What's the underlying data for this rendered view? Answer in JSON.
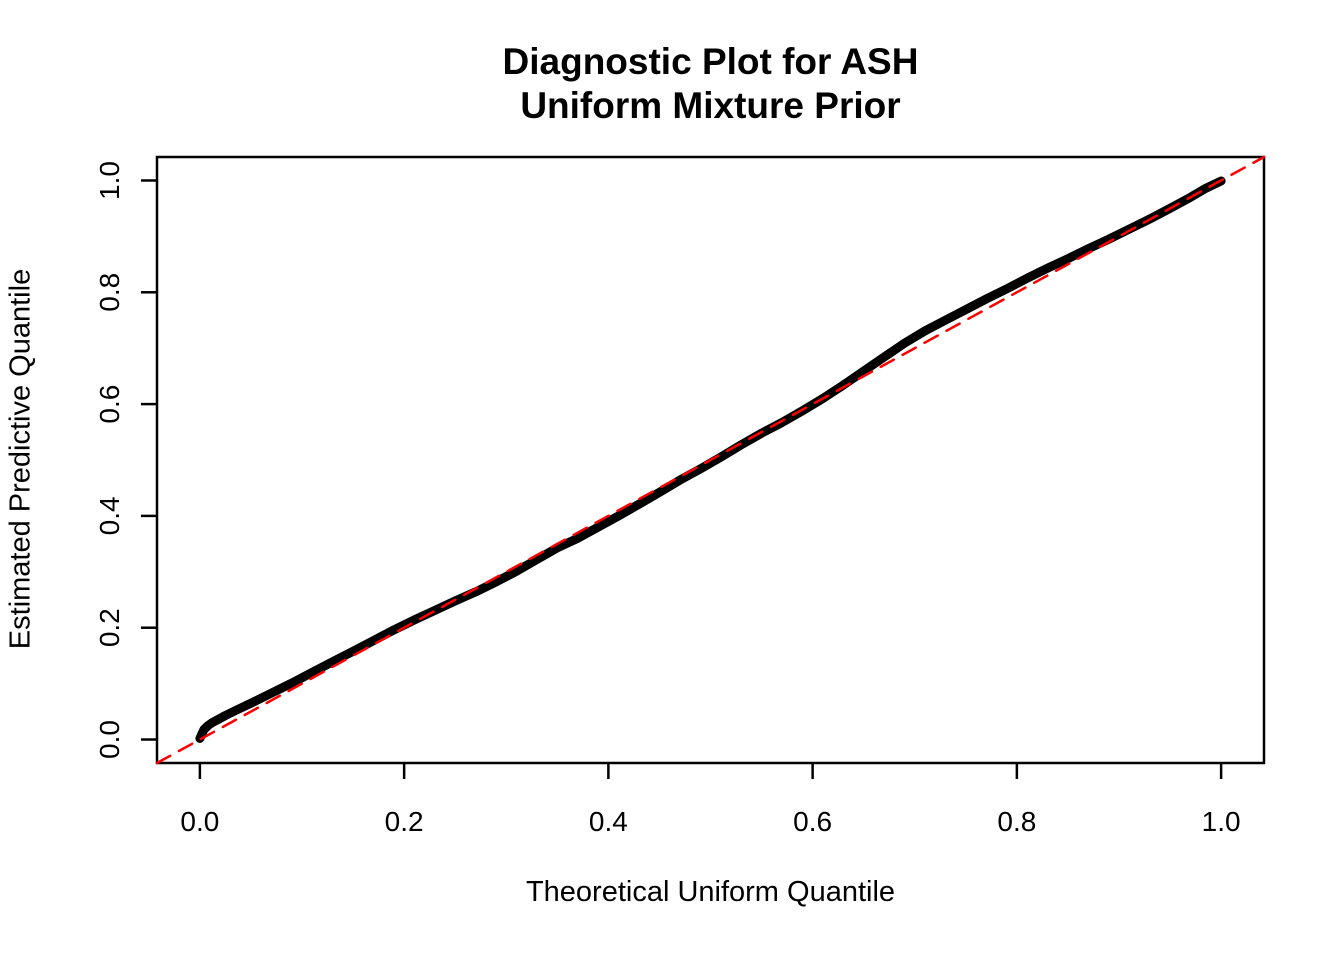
{
  "figure": {
    "title_line1": "Diagnostic Plot for ASH",
    "title_line2": "Uniform Mixture Prior"
  },
  "chart_data": {
    "type": "line",
    "title": "Diagnostic Plot for ASH — Uniform Mixture Prior",
    "xlabel": "Theoretical Uniform Quantile",
    "ylabel": "Estimated Predictive Quantile",
    "xlim": [
      -0.042,
      1.042
    ],
    "ylim": [
      -0.042,
      1.042
    ],
    "grid": false,
    "legend": "none",
    "x_ticks": [
      0.0,
      0.2,
      0.4,
      0.6,
      0.8,
      1.0
    ],
    "x_tick_labels": [
      "0.0",
      "0.2",
      "0.4",
      "0.6",
      "0.8",
      "1.0"
    ],
    "y_ticks": [
      0.0,
      0.2,
      0.4,
      0.6,
      0.8,
      1.0
    ],
    "y_tick_labels": [
      "0.0",
      "0.2",
      "0.4",
      "0.6",
      "0.8",
      "1.0"
    ],
    "colors": {
      "curve": "#000000",
      "reference_line": "#FF0000",
      "axis": "#000000",
      "background": "#FFFFFF"
    },
    "series": [
      {
        "name": "estimated-vs-theoretical-quantiles",
        "role": "data",
        "color": "#000000",
        "dash": false,
        "points": [
          [
            0.0,
            0.002
          ],
          [
            0.002,
            0.01
          ],
          [
            0.004,
            0.018
          ],
          [
            0.008,
            0.025
          ],
          [
            0.012,
            0.03
          ],
          [
            0.018,
            0.036
          ],
          [
            0.025,
            0.043
          ],
          [
            0.035,
            0.052
          ],
          [
            0.05,
            0.065
          ],
          [
            0.07,
            0.083
          ],
          [
            0.09,
            0.101
          ],
          [
            0.11,
            0.12
          ],
          [
            0.13,
            0.139
          ],
          [
            0.15,
            0.158
          ],
          [
            0.17,
            0.177
          ],
          [
            0.19,
            0.196
          ],
          [
            0.21,
            0.214
          ],
          [
            0.23,
            0.231
          ],
          [
            0.25,
            0.248
          ],
          [
            0.27,
            0.264
          ],
          [
            0.29,
            0.282
          ],
          [
            0.31,
            0.301
          ],
          [
            0.33,
            0.322
          ],
          [
            0.35,
            0.343
          ],
          [
            0.37,
            0.36
          ],
          [
            0.39,
            0.38
          ],
          [
            0.41,
            0.4
          ],
          [
            0.43,
            0.421
          ],
          [
            0.45,
            0.442
          ],
          [
            0.47,
            0.464
          ],
          [
            0.49,
            0.484
          ],
          [
            0.51,
            0.505
          ],
          [
            0.53,
            0.527
          ],
          [
            0.55,
            0.548
          ],
          [
            0.57,
            0.567
          ],
          [
            0.59,
            0.588
          ],
          [
            0.61,
            0.61
          ],
          [
            0.63,
            0.634
          ],
          [
            0.65,
            0.659
          ],
          [
            0.67,
            0.684
          ],
          [
            0.69,
            0.709
          ],
          [
            0.71,
            0.731
          ],
          [
            0.73,
            0.75
          ],
          [
            0.75,
            0.769
          ],
          [
            0.77,
            0.788
          ],
          [
            0.79,
            0.806
          ],
          [
            0.81,
            0.825
          ],
          [
            0.83,
            0.843
          ],
          [
            0.85,
            0.86
          ],
          [
            0.87,
            0.878
          ],
          [
            0.89,
            0.895
          ],
          [
            0.91,
            0.913
          ],
          [
            0.93,
            0.931
          ],
          [
            0.95,
            0.95
          ],
          [
            0.97,
            0.97
          ],
          [
            0.985,
            0.986
          ],
          [
            1.0,
            0.999
          ]
        ]
      },
      {
        "name": "identity-reference",
        "role": "reference",
        "color": "#FF0000",
        "dash": true,
        "points": [
          [
            -0.042,
            -0.042
          ],
          [
            1.042,
            1.042
          ]
        ]
      }
    ]
  }
}
